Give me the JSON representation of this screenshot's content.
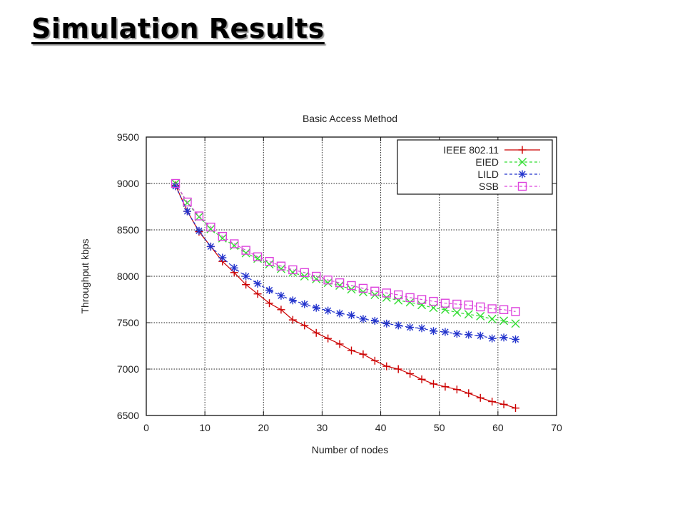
{
  "slide": {
    "title": "Simulation Results"
  },
  "chart_data": {
    "type": "line",
    "title": "Basic Access Method",
    "xlabel": "Number of nodes",
    "ylabel": "Throughput kbps",
    "xlim": [
      0,
      70
    ],
    "ylim": [
      6500,
      9500
    ],
    "xticks": [
      0,
      10,
      20,
      30,
      40,
      50,
      60,
      70
    ],
    "yticks": [
      6500,
      7000,
      7500,
      8000,
      8500,
      9000,
      9500
    ],
    "grid": true,
    "legend_position": "top-right",
    "x": [
      5,
      7,
      9,
      11,
      13,
      15,
      17,
      19,
      21,
      23,
      25,
      27,
      29,
      31,
      33,
      35,
      37,
      39,
      41,
      43,
      45,
      47,
      49,
      51,
      53,
      55,
      57,
      59,
      61,
      63
    ],
    "series": [
      {
        "name": "IEEE 802.11",
        "color": "#cc0000",
        "marker": "plus",
        "dash": "solid",
        "values": [
          8980,
          8700,
          8480,
          8320,
          8160,
          8040,
          7910,
          7810,
          7710,
          7640,
          7530,
          7470,
          7390,
          7330,
          7270,
          7200,
          7160,
          7090,
          7030,
          7000,
          6950,
          6890,
          6840,
          6810,
          6780,
          6740,
          6690,
          6650,
          6620,
          6580
        ]
      },
      {
        "name": "EIED",
        "color": "#33dd33",
        "marker": "cross",
        "dash": "dashed",
        "values": [
          9000,
          8790,
          8640,
          8510,
          8410,
          8330,
          8250,
          8190,
          8130,
          8080,
          8040,
          8000,
          7970,
          7930,
          7900,
          7860,
          7830,
          7800,
          7770,
          7740,
          7720,
          7690,
          7660,
          7640,
          7610,
          7590,
          7570,
          7540,
          7520,
          7490
        ]
      },
      {
        "name": "LILD",
        "color": "#2233cc",
        "marker": "star",
        "dash": "dashed",
        "values": [
          8970,
          8700,
          8490,
          8320,
          8200,
          8090,
          8000,
          7920,
          7850,
          7790,
          7740,
          7700,
          7660,
          7630,
          7600,
          7580,
          7540,
          7520,
          7490,
          7470,
          7450,
          7440,
          7410,
          7400,
          7380,
          7370,
          7360,
          7330,
          7340,
          7320
        ]
      },
      {
        "name": "SSB",
        "color": "#dd44dd",
        "marker": "square",
        "dash": "dashed",
        "values": [
          9000,
          8800,
          8650,
          8530,
          8430,
          8350,
          8280,
          8210,
          8160,
          8110,
          8070,
          8040,
          8000,
          7960,
          7930,
          7900,
          7870,
          7840,
          7820,
          7800,
          7770,
          7750,
          7730,
          7710,
          7700,
          7690,
          7670,
          7650,
          7640,
          7620
        ]
      }
    ]
  }
}
